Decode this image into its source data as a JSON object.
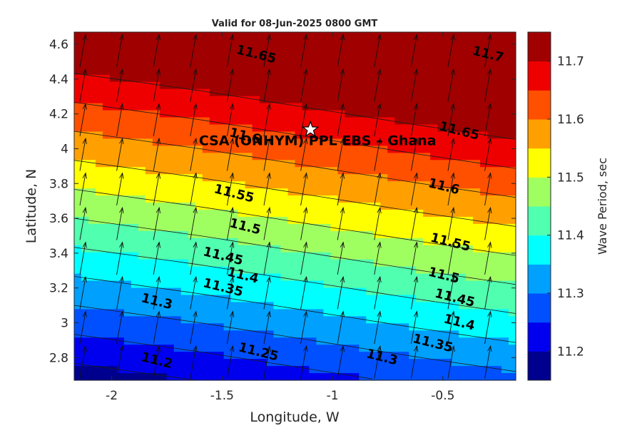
{
  "chart_data": {
    "type": "heatmap",
    "title": "Valid for 08-Jun-2025 0800 GMT",
    "xlabel": "Longitude, W",
    "ylabel": "Latitude, N",
    "xlim": [
      -2.17,
      -0.17
    ],
    "ylim": [
      2.67,
      4.67
    ],
    "xticks": [
      -2,
      -1.5,
      -1,
      -0.5
    ],
    "xtick_labels": [
      "-2",
      "-1.5",
      "-1",
      "-0.5"
    ],
    "yticks": [
      2.8,
      3.0,
      3.2,
      3.4,
      3.6,
      3.8,
      4.0,
      4.2,
      4.4,
      4.6
    ],
    "ytick_labels": [
      "2.8",
      "3",
      "3.2",
      "3.4",
      "3.6",
      "3.8",
      "4",
      "4.2",
      "4.4",
      "4.6"
    ],
    "colorbar": {
      "label": "Wave Period, sec",
      "range": [
        11.15,
        11.75
      ],
      "ticks": [
        11.2,
        11.3,
        11.4,
        11.5,
        11.6,
        11.7
      ],
      "tick_labels": [
        "11.2",
        "11.3",
        "11.4",
        "11.5",
        "11.6",
        "11.7"
      ],
      "colors": [
        "#00008f",
        "#0000ef",
        "#0050ff",
        "#00a0ff",
        "#00ffff",
        "#50ffaf",
        "#a0ff60",
        "#ffff00",
        "#ffa000",
        "#ff5000",
        "#ef0000",
        "#a00000"
      ]
    },
    "contour_levels": [
      11.2,
      11.25,
      11.3,
      11.35,
      11.4,
      11.45,
      11.5,
      11.55,
      11.6,
      11.65,
      11.7
    ],
    "contour_labels": [
      {
        "text": "11.2",
        "lon": -1.8,
        "lat": 2.76
      },
      {
        "text": "11.25",
        "lon": -1.34,
        "lat": 2.81
      },
      {
        "text": "11.3",
        "lon": -1.8,
        "lat": 3.1
      },
      {
        "text": "11.35",
        "lon": -1.5,
        "lat": 3.18
      },
      {
        "text": "11.4",
        "lon": -1.41,
        "lat": 3.25
      },
      {
        "text": "11.45",
        "lon": -1.5,
        "lat": 3.36
      },
      {
        "text": "11.5",
        "lon": -1.4,
        "lat": 3.53
      },
      {
        "text": "11.55",
        "lon": -1.45,
        "lat": 3.72
      },
      {
        "text": "11.6",
        "lon": -1.4,
        "lat": 4.05
      },
      {
        "text": "11.65",
        "lon": -1.35,
        "lat": 4.52
      },
      {
        "text": "11.7",
        "lon": -0.3,
        "lat": 4.52
      },
      {
        "text": "11.3",
        "lon": -0.78,
        "lat": 2.78
      },
      {
        "text": "11.35",
        "lon": -0.55,
        "lat": 2.86
      },
      {
        "text": "11.4",
        "lon": -0.43,
        "lat": 2.98
      },
      {
        "text": "11.45",
        "lon": -0.45,
        "lat": 3.12
      },
      {
        "text": "11.5",
        "lon": -0.5,
        "lat": 3.25
      },
      {
        "text": "11.55",
        "lon": -0.47,
        "lat": 3.44
      },
      {
        "text": "11.6",
        "lon": -0.5,
        "lat": 3.76
      },
      {
        "text": "11.65",
        "lon": -0.43,
        "lat": 4.08
      }
    ],
    "site": {
      "name": "CSA (ONHYM) PPL EBS  – Ghana",
      "lon": -1.1,
      "lat": 4.11
    },
    "vector_field": {
      "variable": "wave direction",
      "mean_direction_deg": 10,
      "note": "arrows point north-northeast across entire domain"
    },
    "grid": false
  }
}
